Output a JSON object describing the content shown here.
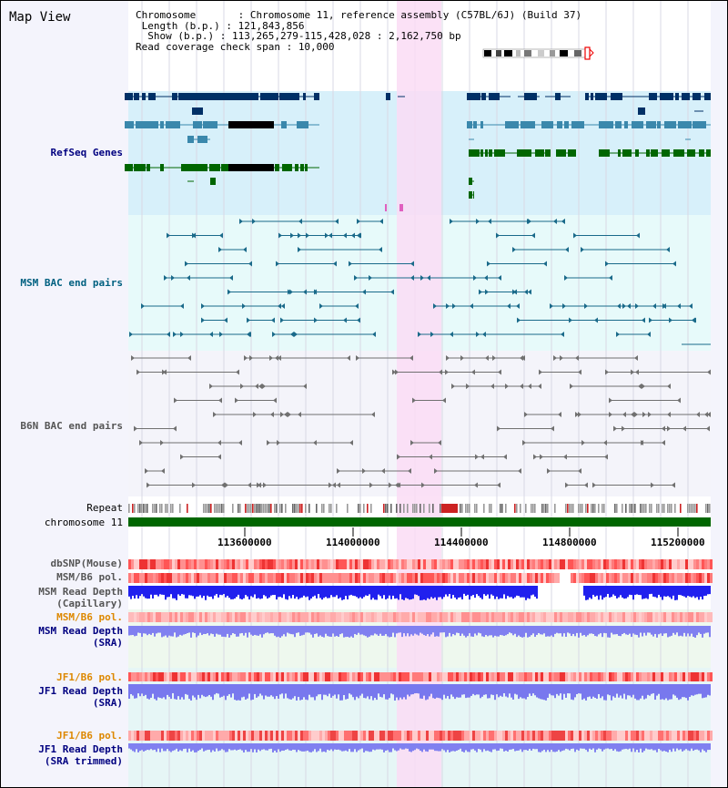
{
  "app": {
    "title": "Map View"
  },
  "info": {
    "chromosome_label": "Chromosome       : ",
    "chromosome_value": "Chromosome 11, reference assembly (C57BL/6J) (Build 37)",
    "length_label": " Length (b.p.) : ",
    "length_value": "121,843,856",
    "show_label": "  Show (b.p.) : ",
    "show_value": "113,265,279-115,428,028 : 2,162,750 bp",
    "coverage_label": "Read coverage check span : ",
    "coverage_value": "10,000"
  },
  "tracks": {
    "refseq": "RefSeq Genes",
    "msm_bac": "MSM BAC end pairs",
    "b6n_bac": "B6N BAC end pairs",
    "repeat": "Repeat",
    "chromosome": "chromosome 11",
    "dbsnp": "dbSNP(Mouse)",
    "msm_b6_pol": "MSM/B6 pol.",
    "msm_depth_cap_1": "MSM Read Depth",
    "msm_depth_cap_2": "(Capillary)",
    "msm_b6_pol_sra": "MSM/B6 pol.",
    "msm_depth_sra_1": "MSM Read Depth",
    "msm_depth_sra_2": "(SRA)",
    "jf1_b6_pol": "JF1/B6 pol.",
    "jf1_depth_sra_1": "JF1 Read Depth",
    "jf1_depth_sra_2": "(SRA)",
    "jf1_b6_pol_trim": "JF1/B6 pol.",
    "jf1_depth_trim_1": "JF1 Read Depth",
    "jf1_depth_trim_2": "(SRA trimmed)"
  },
  "axis": {
    "ticks": [
      "113600000",
      "114000000",
      "114400000",
      "114800000",
      "115200000"
    ]
  },
  "colors": {
    "refseq_bg": "#d7f0fa",
    "msm_bg": "#e7fafa",
    "b6n_bg": "#f4f4fa",
    "highlight": "#fadcf5",
    "gene_dark": "#003066",
    "gene_mid": "#3a88ac",
    "gene_green": "#006600",
    "msm_pair": "#1a6a8a",
    "b6n_pair": "#707070",
    "chromosome_bar": "#006600",
    "depth_blue": "#2020ee",
    "depth_light": "#8080f0",
    "label_blue": "#000080",
    "label_teal": "#006080",
    "label_orange": "#dd8800"
  }
}
